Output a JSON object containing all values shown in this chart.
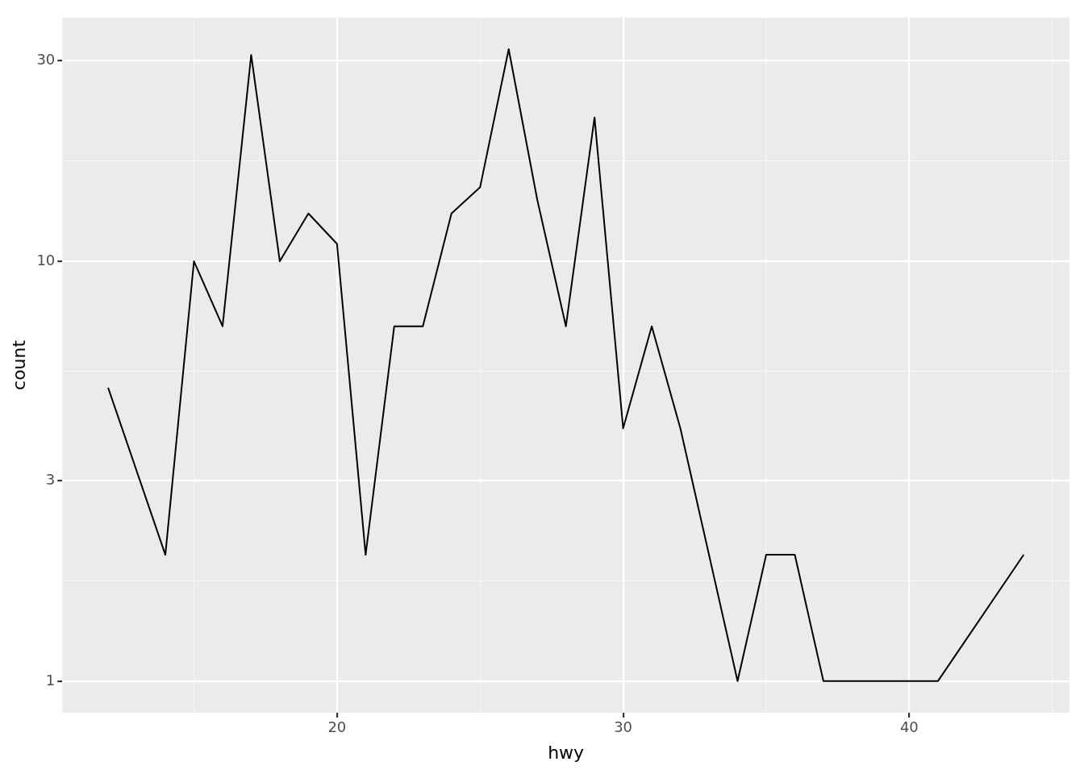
{
  "chart_data": {
    "type": "line",
    "xlabel": "hwy",
    "ylabel": "count",
    "log": "y",
    "grid": true,
    "legend": false,
    "marker": "none",
    "line_style": "solid",
    "x": [
      12,
      14,
      15,
      16,
      17,
      18,
      19,
      20,
      21,
      22,
      23,
      24,
      25,
      26,
      27,
      28,
      29,
      30,
      31,
      32,
      33,
      34,
      35,
      36,
      37,
      41,
      44
    ],
    "series": [
      {
        "color": "#000000",
        "values": [
          5,
          2,
          10,
          7,
          31,
          10,
          13,
          11,
          2,
          7,
          7,
          13,
          15,
          32,
          14,
          7,
          22,
          4,
          7,
          4,
          2,
          1,
          2,
          2,
          1,
          1,
          2
        ]
      }
    ],
    "xlim": [
      10.4,
      45.6
    ],
    "xticks": [
      20,
      30,
      40,
      {
        "value": 15,
        "label": null
      },
      {
        "value": 25,
        "label": null
      },
      {
        "value": 35,
        "label": null
      },
      {
        "value": 45,
        "label": null
      }
    ],
    "ylim": [
      0.841,
      38.05
    ],
    "yticks": [
      1,
      3,
      10,
      30,
      {
        "value": 1.732,
        "label": null
      },
      {
        "value": 5.477,
        "label": null
      },
      {
        "value": 17.32,
        "label": null
      }
    ]
  }
}
